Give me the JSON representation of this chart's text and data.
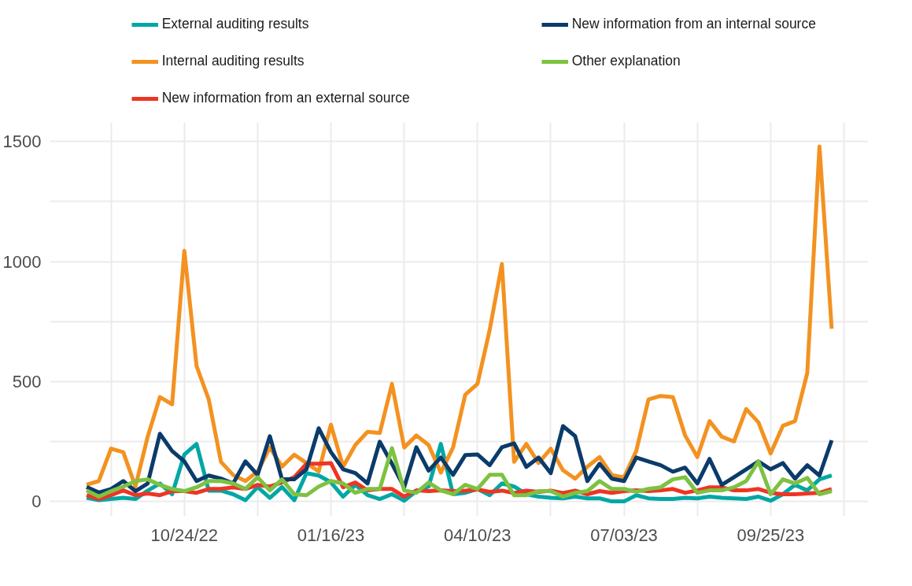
{
  "chart_data": {
    "type": "line",
    "x": [
      "2022-08-29",
      "2022-09-05",
      "2022-09-12",
      "2022-09-19",
      "2022-09-26",
      "2022-10-03",
      "2022-10-10",
      "2022-10-17",
      "2022-10-24",
      "2022-10-31",
      "2022-11-07",
      "2022-11-14",
      "2022-11-21",
      "2022-11-28",
      "2022-12-05",
      "2022-12-12",
      "2022-12-19",
      "2022-12-26",
      "2023-01-02",
      "2023-01-09",
      "2023-01-16",
      "2023-01-23",
      "2023-01-30",
      "2023-02-06",
      "2023-02-13",
      "2023-02-20",
      "2023-02-27",
      "2023-03-06",
      "2023-03-13",
      "2023-03-20",
      "2023-03-27",
      "2023-04-03",
      "2023-04-10",
      "2023-04-17",
      "2023-04-24",
      "2023-05-01",
      "2023-05-08",
      "2023-05-15",
      "2023-05-22",
      "2023-05-29",
      "2023-06-05",
      "2023-06-12",
      "2023-06-19",
      "2023-06-26",
      "2023-07-03",
      "2023-07-10",
      "2023-07-17",
      "2023-07-24",
      "2023-07-31",
      "2023-08-07",
      "2023-08-14",
      "2023-08-21",
      "2023-08-28",
      "2023-09-04",
      "2023-09-11",
      "2023-09-18",
      "2023-09-25",
      "2023-10-02",
      "2023-10-09",
      "2023-10-16",
      "2023-10-23",
      "2023-10-30"
    ],
    "series": [
      {
        "name": "External auditing results",
        "color": "#00a7a5",
        "values": [
          15,
          5,
          10,
          15,
          10,
          45,
          75,
          30,
          195,
          240,
          45,
          45,
          30,
          5,
          60,
          15,
          60,
          5,
          118,
          108,
          80,
          20,
          69,
          26,
          10,
          30,
          3,
          43,
          62,
          240,
          30,
          36,
          52,
          26,
          75,
          62,
          30,
          20,
          15,
          13,
          20,
          13,
          13,
          0,
          0,
          26,
          13,
          10,
          10,
          15,
          13,
          20,
          15,
          13,
          10,
          20,
          3,
          30,
          69,
          46,
          92,
          108
        ]
      },
      {
        "name": "Internal auditing results",
        "color": "#f39220",
        "values": [
          70,
          85,
          220,
          205,
          62,
          270,
          435,
          405,
          1045,
          565,
          425,
          165,
          110,
          85,
          125,
          225,
          145,
          195,
          160,
          125,
          320,
          145,
          235,
          290,
          285,
          490,
          225,
          275,
          235,
          120,
          225,
          445,
          490,
          715,
          990,
          165,
          240,
          160,
          220,
          130,
          95,
          145,
          185,
          110,
          100,
          210,
          425,
          440,
          435,
          275,
          185,
          335,
          270,
          250,
          385,
          330,
          200,
          315,
          335,
          535,
          1480,
          720
        ]
      },
      {
        "name": "New information from an external source",
        "color": "#ee3524",
        "values": [
          26,
          10,
          26,
          46,
          26,
          33,
          26,
          43,
          43,
          36,
          52,
          52,
          59,
          52,
          69,
          62,
          79,
          101,
          157,
          157,
          160,
          59,
          79,
          46,
          52,
          52,
          20,
          46,
          43,
          46,
          43,
          45,
          50,
          40,
          45,
          35,
          45,
          40,
          45,
          35,
          45,
          30,
          43,
          36,
          43,
          46,
          43,
          46,
          52,
          36,
          46,
          59,
          59,
          46,
          46,
          52,
          36,
          30,
          30,
          33,
          36,
          52
        ]
      },
      {
        "name": "New information from an internal source",
        "color": "#0b3b6a",
        "values": [
          60,
          37,
          52,
          85,
          43,
          75,
          282,
          210,
          167,
          85,
          108,
          95,
          75,
          167,
          111,
          272,
          92,
          92,
          134,
          305,
          206,
          134,
          118,
          75,
          249,
          157,
          59,
          226,
          128,
          183,
          111,
          193,
          196,
          151,
          226,
          242,
          144,
          183,
          118,
          314,
          272,
          85,
          157,
          95,
          85,
          183,
          167,
          151,
          124,
          141,
          75,
          177,
          69,
          101,
          134,
          167,
          134,
          160,
          95,
          151,
          108,
          255
        ]
      },
      {
        "name": "Other explanation",
        "color": "#7dc242",
        "values": [
          46,
          20,
          43,
          62,
          85,
          92,
          69,
          52,
          43,
          59,
          85,
          85,
          75,
          52,
          101,
          46,
          92,
          30,
          26,
          62,
          85,
          75,
          36,
          52,
          52,
          222,
          46,
          36,
          79,
          46,
          30,
          69,
          52,
          111,
          111,
          26,
          26,
          43,
          43,
          20,
          36,
          43,
          85,
          52,
          52,
          40,
          52,
          59,
          92,
          101,
          36,
          46,
          46,
          59,
          85,
          167,
          30,
          92,
          75,
          98,
          30,
          43
        ]
      }
    ],
    "xlim": [
      "2022-08-08",
      "2023-11-20"
    ],
    "xticks": [
      {
        "value": "2022-09-12",
        "label": null
      },
      {
        "value": "2022-10-24",
        "label": "10/24/22"
      },
      {
        "value": "2022-12-05",
        "label": null
      },
      {
        "value": "2023-01-16",
        "label": "01/16/23"
      },
      {
        "value": "2023-02-27",
        "label": null
      },
      {
        "value": "2023-04-10",
        "label": "04/10/23"
      },
      {
        "value": "2023-05-22",
        "label": null
      },
      {
        "value": "2023-07-03",
        "label": "07/03/23"
      },
      {
        "value": "2023-08-14",
        "label": null
      },
      {
        "value": "2023-09-25",
        "label": "09/25/23"
      },
      {
        "value": "2023-11-06",
        "label": null
      }
    ],
    "ylim": [
      -62,
      1580
    ],
    "yticks": [
      0,
      {
        "value": 250,
        "label": null
      },
      500,
      {
        "value": 750,
        "label": null
      },
      1000,
      {
        "value": 1250,
        "label": null
      },
      1500
    ],
    "grid": true,
    "legend": "top",
    "marker": "none",
    "line_style": "solid"
  }
}
